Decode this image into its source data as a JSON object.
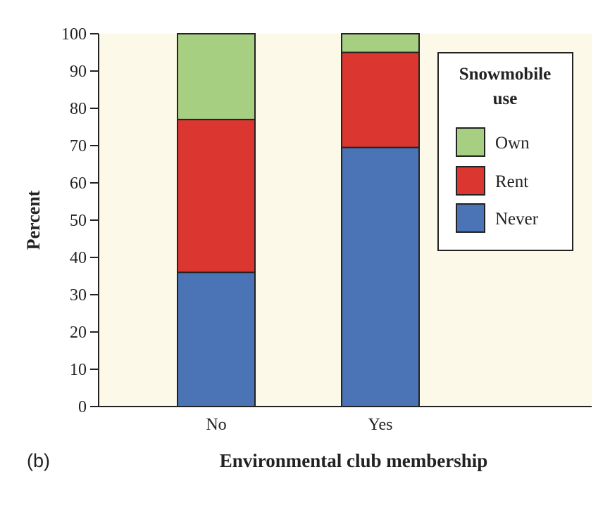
{
  "chart_data": {
    "type": "bar",
    "stacked": true,
    "panel_label": "(b)",
    "title": "",
    "xlabel": "Environmental club membership",
    "ylabel": "Percent",
    "ylim": [
      0,
      100
    ],
    "yticks": [
      0,
      10,
      20,
      30,
      40,
      50,
      60,
      70,
      80,
      90,
      100
    ],
    "categories": [
      "No",
      "Yes"
    ],
    "series": [
      {
        "name": "Never",
        "color": "#4a74b6",
        "values": [
          36,
          69.5
        ]
      },
      {
        "name": "Rent",
        "color": "#db3730",
        "values": [
          41,
          25.5
        ]
      },
      {
        "name": "Own",
        "color": "#a6cf82",
        "values": [
          23,
          5
        ]
      }
    ],
    "legend": {
      "title_lines": [
        "Snowmobile",
        "use"
      ],
      "order": [
        "Own",
        "Rent",
        "Never"
      ],
      "placement": "top-right"
    },
    "plot_background": "#fdf9e8",
    "grid": false
  }
}
